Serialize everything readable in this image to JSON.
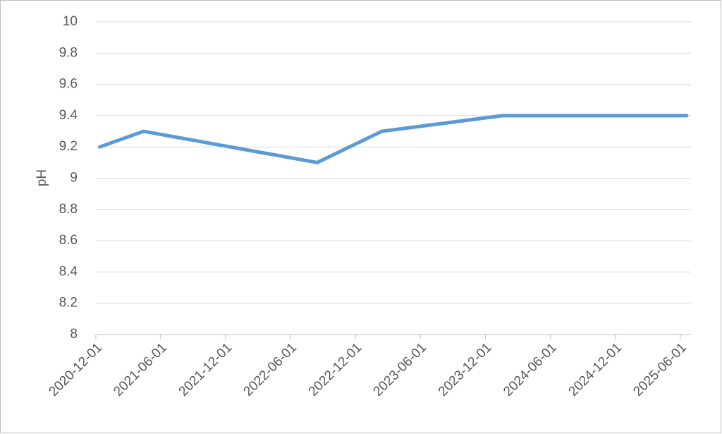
{
  "chart_data": {
    "type": "line",
    "y_label": "pH",
    "x": [
      "2020-12-12",
      "2021-04-14",
      "2022-08-15",
      "2023-02-13",
      "2024-01-18",
      "2025-06-19"
    ],
    "values": [
      9.2,
      9.3,
      9.1,
      9.3,
      9.4,
      9.4
    ],
    "color": "#5b9bd5",
    "xlim": [
      "2020-12-01",
      "2025-07-01"
    ],
    "xticks": [
      "2020-12-01",
      "2021-06-01",
      "2021-12-01",
      "2022-06-01",
      "2022-12-01",
      "2023-06-01",
      "2023-12-01",
      "2024-06-01",
      "2024-12-01",
      "2025-06-01"
    ],
    "ylim": [
      8,
      10
    ],
    "yticks": [
      8,
      8.2,
      8.4,
      8.6,
      8.8,
      9,
      9.2,
      9.4,
      9.6,
      9.8,
      10
    ],
    "grid": true
  }
}
